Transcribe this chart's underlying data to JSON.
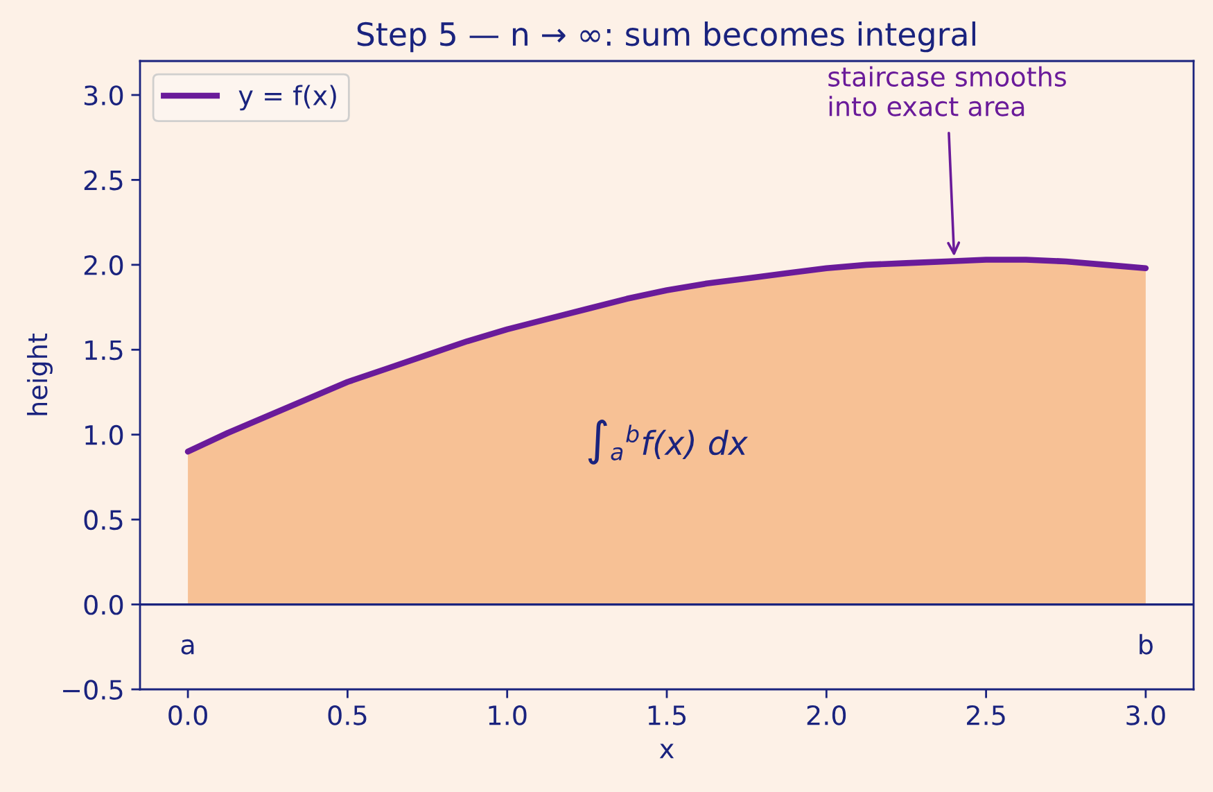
{
  "chart_data": {
    "type": "area",
    "title": "Step 5 — n → ∞: sum becomes integral",
    "xlabel": "x",
    "ylabel": "height",
    "x": [
      0,
      0.125,
      0.25,
      0.375,
      0.5,
      0.625,
      0.75,
      0.875,
      1.0,
      1.125,
      1.25,
      1.375,
      1.5,
      1.625,
      1.75,
      1.875,
      2.0,
      2.125,
      2.25,
      2.375,
      2.5,
      2.625,
      2.75,
      2.875,
      3.0
    ],
    "series": [
      {
        "color": "#f7c195",
        "values": [
          0.9,
          1.01,
          1.11,
          1.21,
          1.31,
          1.39,
          1.47,
          1.55,
          1.62,
          1.68,
          1.74,
          1.8,
          1.85,
          1.89,
          1.92,
          1.95,
          1.98,
          2.0,
          2.01,
          2.02,
          2.03,
          2.03,
          2.02,
          2.0,
          1.98
        ]
      },
      {
        "type": "line",
        "name": "y = f(x)",
        "color": "#6a1b9a",
        "values": [
          0.9,
          1.01,
          1.11,
          1.21,
          1.31,
          1.39,
          1.47,
          1.55,
          1.62,
          1.68,
          1.74,
          1.8,
          1.85,
          1.89,
          1.92,
          1.95,
          1.98,
          2.0,
          2.01,
          2.02,
          2.03,
          2.03,
          2.02,
          2.0,
          1.98
        ]
      }
    ],
    "xlim": [
      -0.15,
      3.15
    ],
    "ylim": [
      -0.5,
      3.2
    ],
    "xticks": [
      {
        "value": 0,
        "label": "0.0"
      },
      0.5,
      {
        "value": 1,
        "label": "1.0"
      },
      1.5,
      {
        "value": 2,
        "label": "2.0"
      },
      2.5,
      {
        "value": 3,
        "label": "3.0"
      }
    ],
    "yticks": [
      {
        "value": -0.5,
        "label": "−0.5"
      },
      {
        "value": 0,
        "label": "0.0"
      },
      0.5,
      {
        "value": 1,
        "label": "1.0"
      },
      1.5,
      {
        "value": 2,
        "label": "2.0"
      },
      2.5,
      {
        "value": 3,
        "label": "3.0"
      }
    ],
    "ref_lines": [
      {
        "axis": "y",
        "value": 0,
        "color": "#1a237e"
      }
    ],
    "annotations": [
      {
        "text": "a",
        "x": 0,
        "y": 0
      },
      {
        "text": "b",
        "x": 3,
        "y": 0
      },
      "∫$_{a}$$^{b}$f(x) dx",
      {
        "text": "staircase smooths\ninto exact area",
        "x": 2.4,
        "y": 2.05
      }
    ],
    "legend": "top left"
  }
}
